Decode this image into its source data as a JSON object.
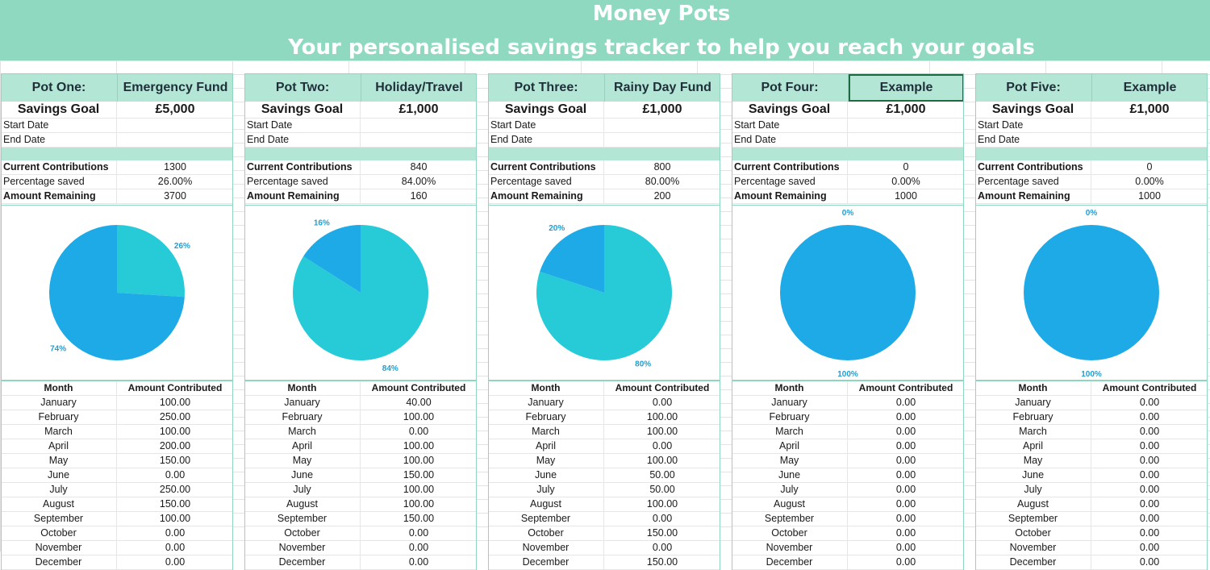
{
  "header": {
    "title": "Money Pots",
    "subtitle": "Your personalised savings tracker to help you reach your goals"
  },
  "labels": {
    "savings_goal": "Savings Goal",
    "start_date": "Start Date",
    "end_date": "End Date",
    "current_contributions": "Current Contributions",
    "percentage_saved": "Percentage saved",
    "amount_remaining": "Amount Remaining",
    "month": "Month",
    "amount_contributed": "Amount Contributed"
  },
  "months": [
    "January",
    "February",
    "March",
    "April",
    "May",
    "June",
    "July",
    "August",
    "September",
    "October",
    "November",
    "December"
  ],
  "colors": {
    "banner": "#8fd9c1",
    "header_fill": "#b4e6d6",
    "pie_saved": "#27cbd8",
    "pie_remaining": "#1daae6"
  },
  "pots": [
    {
      "label": "Pot One:",
      "name": "Emergency Fund",
      "goal": "£5,000",
      "start_date": "",
      "end_date": "",
      "current_contributions": "1300",
      "percentage_saved": "26.00%",
      "amount_remaining": "3700",
      "saved_fraction": 0.26,
      "saved_label": "26%",
      "remaining_label": "74%",
      "monthly": [
        "100.00",
        "250.00",
        "100.00",
        "200.00",
        "150.00",
        "0.00",
        "250.00",
        "150.00",
        "100.00",
        "0.00",
        "0.00",
        "0.00"
      ]
    },
    {
      "label": "Pot Two:",
      "name": "Holiday/Travel",
      "goal": "£1,000",
      "start_date": "",
      "end_date": "",
      "current_contributions": "840",
      "percentage_saved": "84.00%",
      "amount_remaining": "160",
      "saved_fraction": 0.84,
      "saved_label": "84%",
      "remaining_label": "16%",
      "monthly": [
        "40.00",
        "100.00",
        "0.00",
        "100.00",
        "100.00",
        "150.00",
        "100.00",
        "100.00",
        "150.00",
        "0.00",
        "0.00",
        "0.00"
      ]
    },
    {
      "label": "Pot Three:",
      "name": "Rainy Day Fund",
      "goal": "£1,000",
      "start_date": "",
      "end_date": "",
      "current_contributions": "800",
      "percentage_saved": "80.00%",
      "amount_remaining": "200",
      "saved_fraction": 0.8,
      "saved_label": "80%",
      "remaining_label": "20%",
      "monthly": [
        "0.00",
        "100.00",
        "100.00",
        "0.00",
        "100.00",
        "50.00",
        "50.00",
        "100.00",
        "0.00",
        "150.00",
        "0.00",
        "150.00"
      ]
    },
    {
      "label": "Pot Four:",
      "name": "Example",
      "goal": "£1,000",
      "start_date": "",
      "end_date": "",
      "current_contributions": "0",
      "percentage_saved": "0.00%",
      "amount_remaining": "1000",
      "saved_fraction": 0.0,
      "saved_label": "0%",
      "remaining_label": "100%",
      "selected": true,
      "monthly": [
        "0.00",
        "0.00",
        "0.00",
        "0.00",
        "0.00",
        "0.00",
        "0.00",
        "0.00",
        "0.00",
        "0.00",
        "0.00",
        "0.00"
      ]
    },
    {
      "label": "Pot Five:",
      "name": "Example",
      "goal": "£1,000",
      "start_date": "",
      "end_date": "",
      "current_contributions": "0",
      "percentage_saved": "0.00%",
      "amount_remaining": "1000",
      "saved_fraction": 0.0,
      "saved_label": "0%",
      "remaining_label": "100%",
      "monthly": [
        "0.00",
        "0.00",
        "0.00",
        "0.00",
        "0.00",
        "0.00",
        "0.00",
        "0.00",
        "0.00",
        "0.00",
        "0.00",
        "0.00"
      ]
    }
  ]
}
